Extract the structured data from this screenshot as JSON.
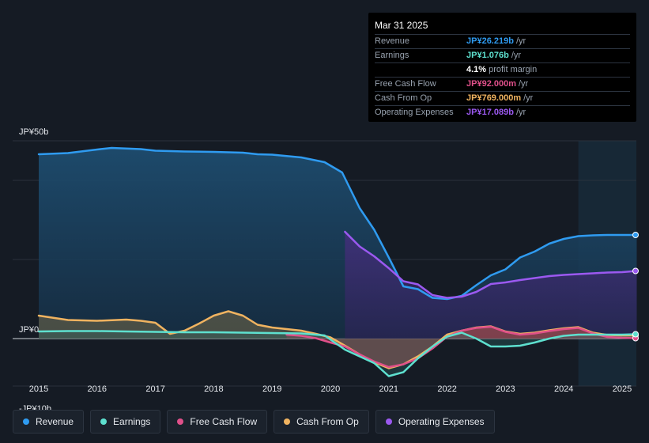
{
  "tooltip": {
    "date": "Mar 31 2025",
    "rows": [
      {
        "label": "Revenue",
        "value": "JP¥26.219b",
        "unit": "/yr",
        "color": "#2f9bf0"
      },
      {
        "label": "Earnings",
        "value": "JP¥1.076b",
        "unit": "/yr",
        "color": "#5ee0cf"
      },
      {
        "label": "",
        "value": "4.1%",
        "unit": "profit margin",
        "color": "#ffffff"
      },
      {
        "label": "Free Cash Flow",
        "value": "JP¥92.000m",
        "unit": "/yr",
        "color": "#e0508a"
      },
      {
        "label": "Cash From Op",
        "value": "JP¥769.000m",
        "unit": "/yr",
        "color": "#f0b360"
      },
      {
        "label": "Operating Expenses",
        "value": "JP¥17.089b",
        "unit": "/yr",
        "color": "#9b59f0"
      }
    ]
  },
  "legend": [
    {
      "label": "Revenue",
      "color": "#2f9bf0"
    },
    {
      "label": "Earnings",
      "color": "#5ee0cf"
    },
    {
      "label": "Free Cash Flow",
      "color": "#e0508a"
    },
    {
      "label": "Cash From Op",
      "color": "#f0b360"
    },
    {
      "label": "Operating Expenses",
      "color": "#9b59f0"
    }
  ],
  "chart_data": {
    "type": "area",
    "currency": "JP¥",
    "unit": "billions",
    "ylim": [
      -10,
      50
    ],
    "y_labels": [
      {
        "value": 50,
        "text": "JP¥50b"
      },
      {
        "value": 0,
        "text": "JP¥0"
      },
      {
        "value": -10,
        "text": "-JP¥10b"
      }
    ],
    "xlim": [
      2014.5,
      2025.25
    ],
    "x_ticks": [
      "2015",
      "2016",
      "2017",
      "2018",
      "2019",
      "2020",
      "2021",
      "2022",
      "2023",
      "2024",
      "2025"
    ],
    "forecast_start": 2024.25,
    "series": [
      {
        "name": "Revenue",
        "color": "#2f9bf0",
        "points": [
          [
            2015,
            46.6
          ],
          [
            2015.5,
            46.9
          ],
          [
            2016,
            47.8
          ],
          [
            2016.25,
            48.2
          ],
          [
            2016.75,
            47.9
          ],
          [
            2017,
            47.5
          ],
          [
            2017.5,
            47.3
          ],
          [
            2018,
            47.2
          ],
          [
            2018.5,
            47.0
          ],
          [
            2018.75,
            46.6
          ],
          [
            2019,
            46.5
          ],
          [
            2019.5,
            45.8
          ],
          [
            2019.9,
            44.6
          ],
          [
            2020.2,
            42.0
          ],
          [
            2020.5,
            33.0
          ],
          [
            2020.75,
            27.5
          ],
          [
            2021,
            20.5
          ],
          [
            2021.25,
            13.2
          ],
          [
            2021.5,
            12.5
          ],
          [
            2021.75,
            10.3
          ],
          [
            2022,
            10.0
          ],
          [
            2022.25,
            10.8
          ],
          [
            2022.5,
            13.5
          ],
          [
            2022.75,
            16.0
          ],
          [
            2023,
            17.5
          ],
          [
            2023.25,
            20.5
          ],
          [
            2023.5,
            22.0
          ],
          [
            2023.75,
            24.0
          ],
          [
            2024,
            25.2
          ],
          [
            2024.25,
            25.9
          ],
          [
            2024.5,
            26.1
          ],
          [
            2024.75,
            26.2
          ],
          [
            2025,
            26.2
          ],
          [
            2025.25,
            26.2
          ]
        ]
      },
      {
        "name": "Operating Expenses",
        "color": "#9b59f0",
        "points": [
          [
            2020.25,
            27.0
          ],
          [
            2020.5,
            23.3
          ],
          [
            2020.75,
            20.8
          ],
          [
            2021,
            17.8
          ],
          [
            2021.25,
            14.5
          ],
          [
            2021.5,
            13.7
          ],
          [
            2021.75,
            11.0
          ],
          [
            2022,
            10.3
          ],
          [
            2022.25,
            10.6
          ],
          [
            2022.5,
            11.8
          ],
          [
            2022.75,
            13.8
          ],
          [
            2023,
            14.2
          ],
          [
            2023.25,
            14.8
          ],
          [
            2023.5,
            15.3
          ],
          [
            2023.75,
            15.8
          ],
          [
            2024,
            16.1
          ],
          [
            2024.25,
            16.3
          ],
          [
            2024.5,
            16.5
          ],
          [
            2024.75,
            16.7
          ],
          [
            2025,
            16.8
          ],
          [
            2025.25,
            17.1
          ]
        ]
      },
      {
        "name": "Cash From Op",
        "color": "#f0b360",
        "points": [
          [
            2015,
            5.8
          ],
          [
            2015.5,
            4.7
          ],
          [
            2016,
            4.5
          ],
          [
            2016.5,
            4.8
          ],
          [
            2016.75,
            4.5
          ],
          [
            2017,
            4.0
          ],
          [
            2017.25,
            1.2
          ],
          [
            2017.5,
            2.0
          ],
          [
            2017.75,
            3.8
          ],
          [
            2018,
            5.8
          ],
          [
            2018.25,
            6.9
          ],
          [
            2018.5,
            5.8
          ],
          [
            2018.75,
            3.5
          ],
          [
            2019,
            2.8
          ],
          [
            2019.5,
            2.0
          ],
          [
            2019.75,
            1.2
          ],
          [
            2020,
            0.3
          ],
          [
            2020.25,
            -1.8
          ],
          [
            2020.5,
            -4.0
          ],
          [
            2020.75,
            -6.0
          ],
          [
            2021,
            -7.5
          ],
          [
            2021.25,
            -6.5
          ],
          [
            2021.5,
            -4.5
          ],
          [
            2021.75,
            -2.0
          ],
          [
            2022,
            1.0
          ],
          [
            2022.25,
            2.0
          ],
          [
            2022.5,
            2.8
          ],
          [
            2022.75,
            3.1
          ],
          [
            2023,
            1.8
          ],
          [
            2023.25,
            1.2
          ],
          [
            2023.5,
            1.5
          ],
          [
            2023.75,
            2.1
          ],
          [
            2024,
            2.6
          ],
          [
            2024.25,
            2.9
          ],
          [
            2024.5,
            1.5
          ],
          [
            2024.75,
            0.9
          ],
          [
            2025,
            0.8
          ],
          [
            2025.25,
            0.8
          ]
        ]
      },
      {
        "name": "Free Cash Flow",
        "color": "#e0508a",
        "points": [
          [
            2019.25,
            1.0
          ],
          [
            2019.5,
            0.7
          ],
          [
            2019.75,
            0.1
          ],
          [
            2020,
            -1.0
          ],
          [
            2020.25,
            -2.0
          ],
          [
            2020.5,
            -4.0
          ],
          [
            2020.75,
            -5.8
          ],
          [
            2021,
            -7.2
          ],
          [
            2021.25,
            -6.5
          ],
          [
            2021.5,
            -5.0
          ],
          [
            2021.75,
            -2.5
          ],
          [
            2022,
            0.5
          ],
          [
            2022.25,
            2.0
          ],
          [
            2022.5,
            2.7
          ],
          [
            2022.75,
            3.0
          ],
          [
            2023,
            1.7
          ],
          [
            2023.25,
            1.0
          ],
          [
            2023.5,
            1.3
          ],
          [
            2023.75,
            1.9
          ],
          [
            2024,
            2.4
          ],
          [
            2024.25,
            2.7
          ],
          [
            2024.5,
            1.3
          ],
          [
            2024.75,
            0.4
          ],
          [
            2025,
            0.2
          ],
          [
            2025.25,
            0.1
          ]
        ]
      },
      {
        "name": "Earnings",
        "color": "#5ee0cf",
        "points": [
          [
            2015,
            1.8
          ],
          [
            2015.5,
            1.9
          ],
          [
            2016,
            1.9
          ],
          [
            2016.5,
            1.8
          ],
          [
            2017,
            1.7
          ],
          [
            2017.5,
            1.6
          ],
          [
            2018,
            1.6
          ],
          [
            2018.5,
            1.5
          ],
          [
            2019,
            1.4
          ],
          [
            2019.5,
            1.3
          ],
          [
            2019.9,
            0.8
          ],
          [
            2020.25,
            -2.8
          ],
          [
            2020.5,
            -4.5
          ],
          [
            2020.75,
            -6.2
          ],
          [
            2021,
            -9.5
          ],
          [
            2021.25,
            -8.5
          ],
          [
            2021.5,
            -5.0
          ],
          [
            2021.75,
            -2.0
          ],
          [
            2022,
            0.5
          ],
          [
            2022.25,
            1.5
          ],
          [
            2022.5,
            0.0
          ],
          [
            2022.75,
            -2.0
          ],
          [
            2023,
            -2.0
          ],
          [
            2023.25,
            -1.8
          ],
          [
            2023.5,
            -1.0
          ],
          [
            2023.75,
            0.0
          ],
          [
            2024,
            0.7
          ],
          [
            2024.25,
            1.0
          ],
          [
            2024.5,
            1.0
          ],
          [
            2024.75,
            1.0
          ],
          [
            2025,
            1.0
          ],
          [
            2025.25,
            1.1
          ]
        ]
      }
    ]
  }
}
